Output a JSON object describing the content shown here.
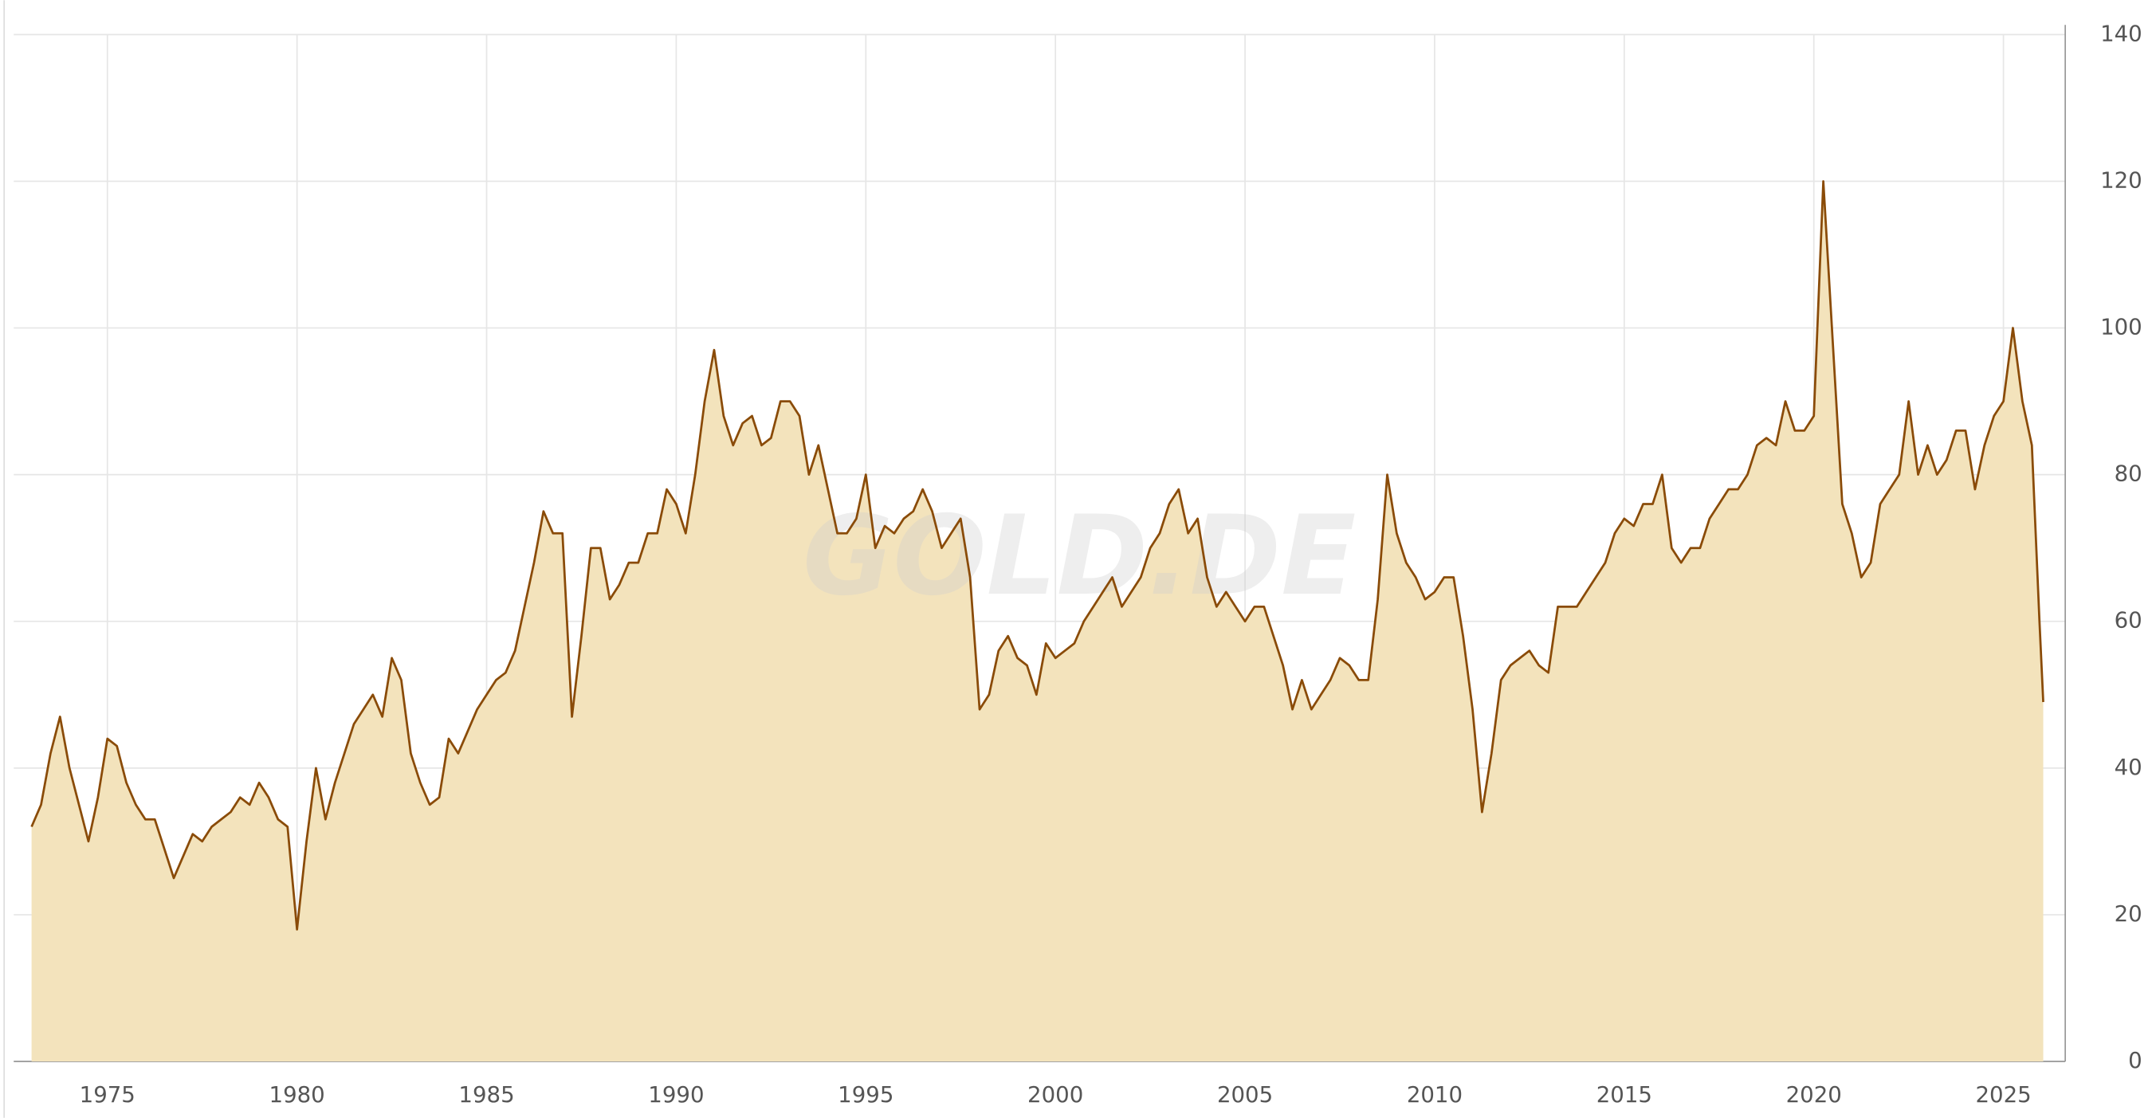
{
  "chart_data": {
    "type": "area",
    "watermark": "GOLD.DE",
    "color": "#8a4b08",
    "fill_color": "#f3e3bc",
    "grid": true,
    "y_axis_side": "right",
    "xlim": [
      1972.53,
      2026.63
    ],
    "xticks": [
      1975,
      1980,
      1985,
      1990,
      1995,
      2000,
      2005,
      2010,
      2015,
      2020,
      2025
    ],
    "ylim": [
      0,
      140
    ],
    "yticks": [
      0,
      20,
      40,
      60,
      80,
      100,
      120,
      140
    ],
    "x": [
      1973.0,
      1973.25,
      1973.5,
      1973.75,
      1974.0,
      1974.25,
      1974.5,
      1974.75,
      1975.0,
      1975.25,
      1975.5,
      1975.75,
      1976.0,
      1976.25,
      1976.5,
      1976.75,
      1977.0,
      1977.25,
      1977.5,
      1977.75,
      1978.0,
      1978.25,
      1978.5,
      1978.75,
      1979.0,
      1979.25,
      1979.5,
      1979.75,
      1980.0,
      1980.25,
      1980.5,
      1980.75,
      1981.0,
      1981.25,
      1981.5,
      1981.75,
      1982.0,
      1982.25,
      1982.5,
      1982.75,
      1983.0,
      1983.25,
      1983.5,
      1983.75,
      1984.0,
      1984.25,
      1984.5,
      1984.75,
      1985.0,
      1985.25,
      1985.5,
      1985.75,
      1986.0,
      1986.25,
      1986.5,
      1986.75,
      1987.0,
      1987.25,
      1987.5,
      1987.75,
      1988.0,
      1988.25,
      1988.5,
      1988.75,
      1989.0,
      1989.25,
      1989.5,
      1989.75,
      1990.0,
      1990.25,
      1990.5,
      1990.75,
      1991.0,
      1991.25,
      1991.5,
      1991.75,
      1992.0,
      1992.25,
      1992.5,
      1992.75,
      1993.0,
      1993.25,
      1993.5,
      1993.75,
      1994.0,
      1994.25,
      1994.5,
      1994.75,
      1995.0,
      1995.25,
      1995.5,
      1995.75,
      1996.0,
      1996.25,
      1996.5,
      1996.75,
      1997.0,
      1997.25,
      1997.5,
      1997.75,
      1998.0,
      1998.25,
      1998.5,
      1998.75,
      1999.0,
      1999.25,
      1999.5,
      1999.75,
      2000.0,
      2000.25,
      2000.5,
      2000.75,
      2001.0,
      2001.25,
      2001.5,
      2001.75,
      2002.0,
      2002.25,
      2002.5,
      2002.75,
      2003.0,
      2003.25,
      2003.5,
      2003.75,
      2004.0,
      2004.25,
      2004.5,
      2004.75,
      2005.0,
      2005.25,
      2005.5,
      2005.75,
      2006.0,
      2006.25,
      2006.5,
      2006.75,
      2007.0,
      2007.25,
      2007.5,
      2007.75,
      2008.0,
      2008.25,
      2008.5,
      2008.75,
      2009.0,
      2009.25,
      2009.5,
      2009.75,
      2010.0,
      2010.25,
      2010.5,
      2010.75,
      2011.0,
      2011.25,
      2011.5,
      2011.75,
      2012.0,
      2012.25,
      2012.5,
      2012.75,
      2013.0,
      2013.25,
      2013.5,
      2013.75,
      2014.0,
      2014.25,
      2014.5,
      2014.75,
      2015.0,
      2015.25,
      2015.5,
      2015.75,
      2016.0,
      2016.25,
      2016.5,
      2016.75,
      2017.0,
      2017.25,
      2017.5,
      2017.75,
      2018.0,
      2018.25,
      2018.5,
      2018.75,
      2019.0,
      2019.25,
      2019.5,
      2019.75,
      2020.0,
      2020.25,
      2020.5,
      2020.75,
      2021.0,
      2021.25,
      2021.5,
      2021.75,
      2022.0,
      2022.25,
      2022.5,
      2022.75,
      2023.0,
      2023.25,
      2023.5,
      2023.75,
      2024.0,
      2024.25,
      2024.5,
      2024.75,
      2025.0,
      2025.25,
      2025.5,
      2025.75,
      2025.95,
      2026.05
    ],
    "values": [
      32,
      35,
      42,
      47,
      40,
      35,
      30,
      36,
      44,
      43,
      38,
      35,
      33,
      33,
      29,
      25,
      28,
      31,
      30,
      32,
      33,
      34,
      36,
      35,
      38,
      36,
      33,
      32,
      18,
      30,
      40,
      33,
      38,
      42,
      46,
      48,
      50,
      47,
      55,
      52,
      42,
      38,
      35,
      36,
      44,
      42,
      45,
      48,
      50,
      52,
      53,
      56,
      62,
      68,
      75,
      72,
      72,
      47,
      58,
      70,
      70,
      63,
      65,
      68,
      68,
      72,
      72,
      78,
      76,
      72,
      80,
      90,
      97,
      88,
      84,
      87,
      88,
      84,
      85,
      90,
      90,
      88,
      80,
      84,
      78,
      72,
      72,
      74,
      80,
      70,
      73,
      72,
      74,
      75,
      78,
      75,
      70,
      72,
      74,
      66,
      48,
      50,
      56,
      58,
      55,
      54,
      50,
      57,
      55,
      56,
      57,
      60,
      62,
      64,
      66,
      62,
      64,
      66,
      70,
      72,
      76,
      78,
      72,
      74,
      66,
      62,
      64,
      62,
      60,
      62,
      62,
      58,
      54,
      48,
      52,
      48,
      50,
      52,
      55,
      54,
      52,
      52,
      63,
      80,
      72,
      68,
      66,
      63,
      64,
      66,
      66,
      58,
      48,
      34,
      42,
      52,
      54,
      55,
      56,
      54,
      53,
      62,
      62,
      62,
      64,
      66,
      68,
      72,
      74,
      73,
      76,
      76,
      80,
      70,
      68,
      70,
      70,
      74,
      76,
      78,
      78,
      80,
      84,
      85,
      84,
      90,
      86,
      86,
      88,
      120,
      98,
      76,
      72,
      66,
      68,
      76,
      78,
      80,
      90,
      80,
      84,
      80,
      82,
      86,
      86,
      78,
      84,
      88,
      90,
      100,
      90,
      84,
      60,
      49
    ]
  }
}
